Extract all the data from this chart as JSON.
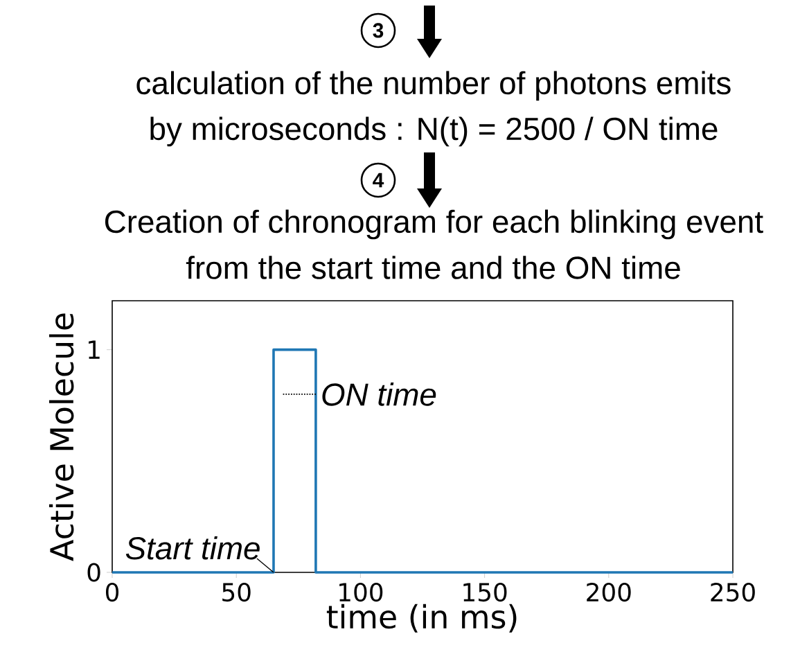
{
  "chart_data": {
    "type": "line",
    "annotations": [
      "3",
      "calculation of the number of photons emits",
      "by microseconds : N(t) =  2500 / ON time",
      "4",
      "Creation of chronogram for each blinking event",
      "from the start time and the ON time",
      {
        "text": "ON time",
        "x": 82,
        "y": 0.8
      },
      {
        "text": "Start time",
        "x": 65,
        "y": 0
      }
    ],
    "x": [
      0,
      65,
      65,
      82,
      82,
      250
    ],
    "series": [
      {
        "color": "#1f77b4",
        "values": [
          0,
          0,
          1,
          1,
          0,
          0
        ]
      }
    ],
    "xlabel": "time (in ms)",
    "ylabel": "Active Molecule",
    "xlim": [
      0,
      250
    ],
    "ylim": [
      0,
      1.22
    ],
    "xticks": [
      0,
      50,
      100,
      150,
      200,
      250
    ],
    "yticks": [
      0,
      1
    ],
    "grid": false,
    "marker": "none",
    "line_style": "solid"
  }
}
